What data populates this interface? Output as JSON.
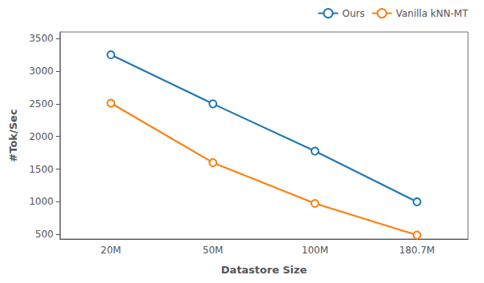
{
  "chart_data": {
    "type": "line",
    "xlabel": "Datastore Size",
    "ylabel": "#Tok/Sec",
    "categories": [
      "20M",
      "50M",
      "100M",
      "180.7M"
    ],
    "series": [
      {
        "name": "Ours",
        "color": "#1f77b4",
        "values": [
          3250,
          2500,
          1775,
          1000
        ],
        "marker": "o"
      },
      {
        "name": "Vanilla kNN-MT",
        "color": "#ff7f0e",
        "values": [
          2510,
          1600,
          975,
          490
        ],
        "marker": "o"
      }
    ],
    "ylim": [
      430,
      3600
    ],
    "yticks": [
      500,
      1000,
      1500,
      2000,
      2500,
      3000,
      3500
    ],
    "grid": false,
    "legend": "upper right"
  }
}
